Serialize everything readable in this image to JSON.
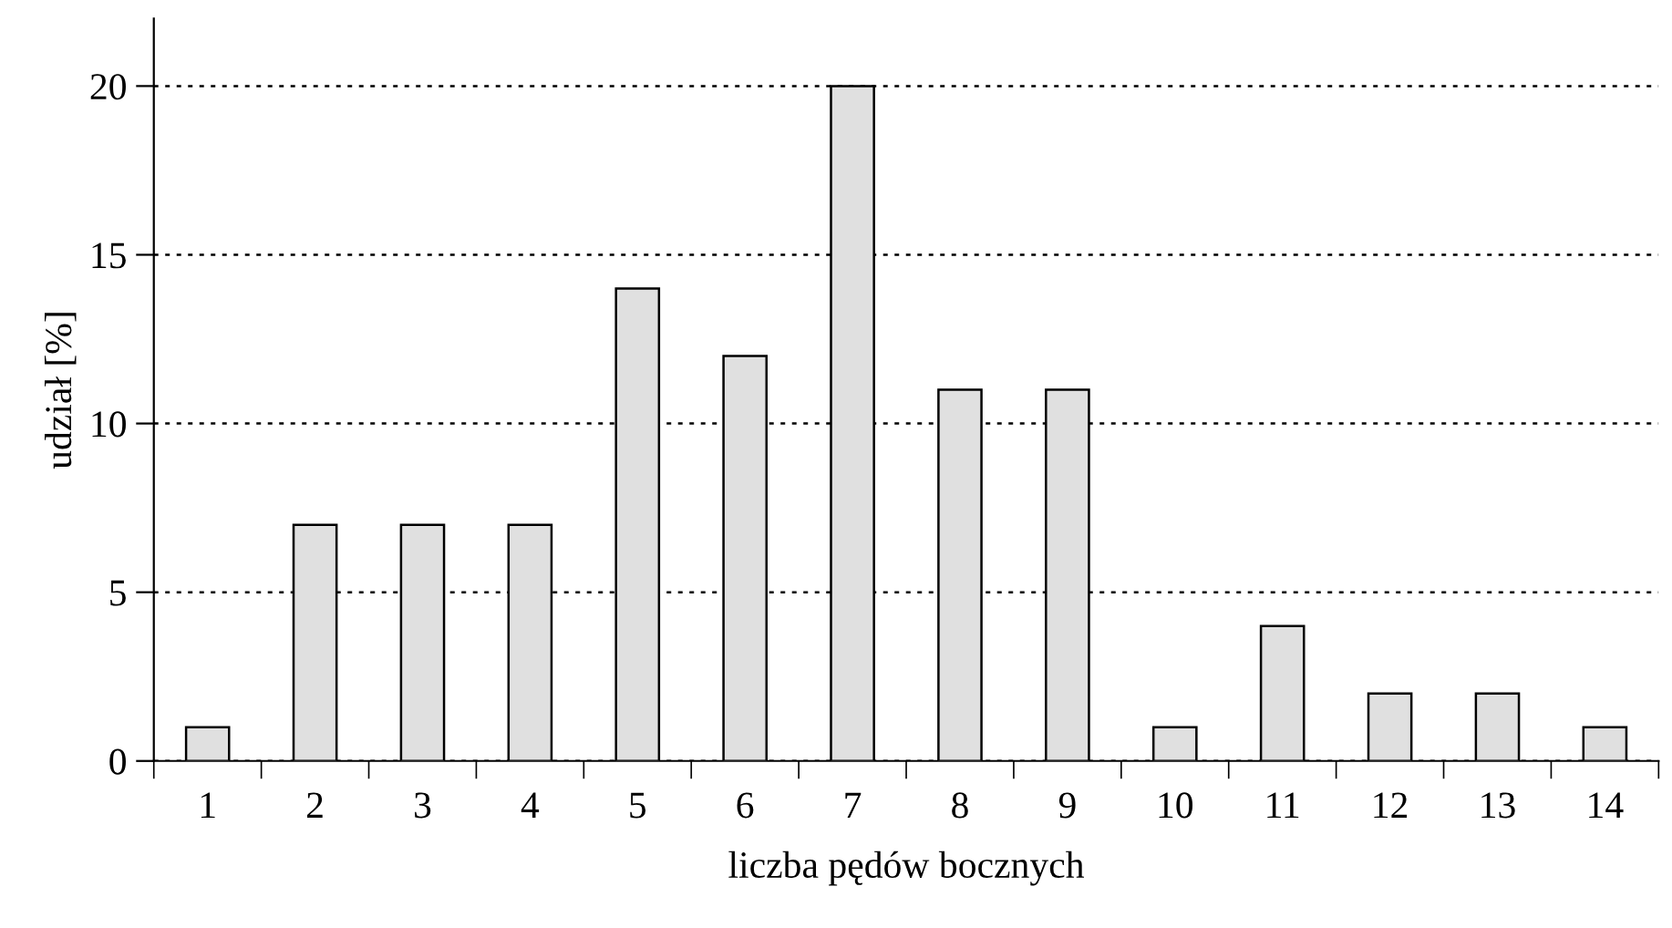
{
  "chart_data": {
    "type": "bar",
    "xlabel": "liczba pędów bocznych",
    "ylabel": "udział [%]",
    "categories": [
      "1",
      "2",
      "3",
      "4",
      "5",
      "6",
      "7",
      "8",
      "9",
      "10",
      "11",
      "12",
      "13",
      "14"
    ],
    "values": [
      1,
      7,
      7,
      7,
      14,
      12,
      20,
      11,
      11,
      1,
      4,
      2,
      2,
      1
    ],
    "color": "#e0e0e0",
    "ylim": [
      0,
      22
    ],
    "yticks": [
      0,
      5,
      10,
      15,
      20
    ],
    "grid": "y"
  }
}
